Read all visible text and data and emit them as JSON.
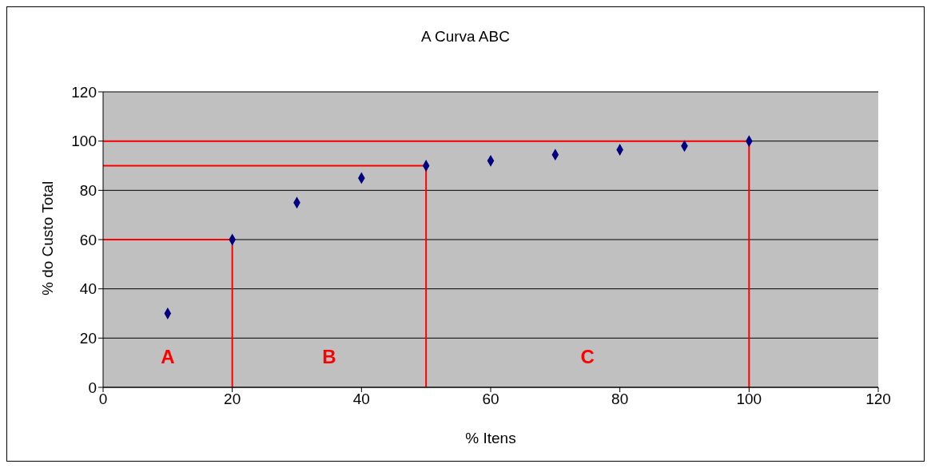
{
  "chart_data": {
    "type": "scatter",
    "title": "A Curva ABC",
    "xlabel": "% Itens",
    "ylabel": "% do Custo Total",
    "x": [
      10,
      20,
      30,
      40,
      50,
      60,
      70,
      80,
      90,
      100
    ],
    "series": [
      {
        "color": "#000080",
        "marker": "diamond",
        "values": [
          30,
          60,
          75,
          85,
          90,
          92,
          94.5,
          96.5,
          98,
          100
        ]
      },
      {
        "type": "line",
        "color": "#ff0000",
        "x": [
          0,
          20,
          20
        ],
        "values": [
          60,
          60,
          0
        ]
      },
      {
        "type": "line",
        "color": "#ff0000",
        "x": [
          0,
          50,
          50
        ],
        "values": [
          90,
          90,
          0
        ]
      },
      {
        "type": "line",
        "color": "#ff0000",
        "x": [
          0,
          100,
          100
        ],
        "values": [
          100,
          100,
          0
        ]
      }
    ],
    "annotations": [
      "A",
      "B",
      "C"
    ],
    "xlim": [
      0,
      120
    ],
    "xticks": [
      0,
      20,
      40,
      60,
      80,
      100,
      120
    ],
    "ylim": [
      0,
      120
    ],
    "yticks": [
      0,
      20,
      40,
      60,
      80,
      100,
      120
    ],
    "grid": "y",
    "legend": false
  }
}
